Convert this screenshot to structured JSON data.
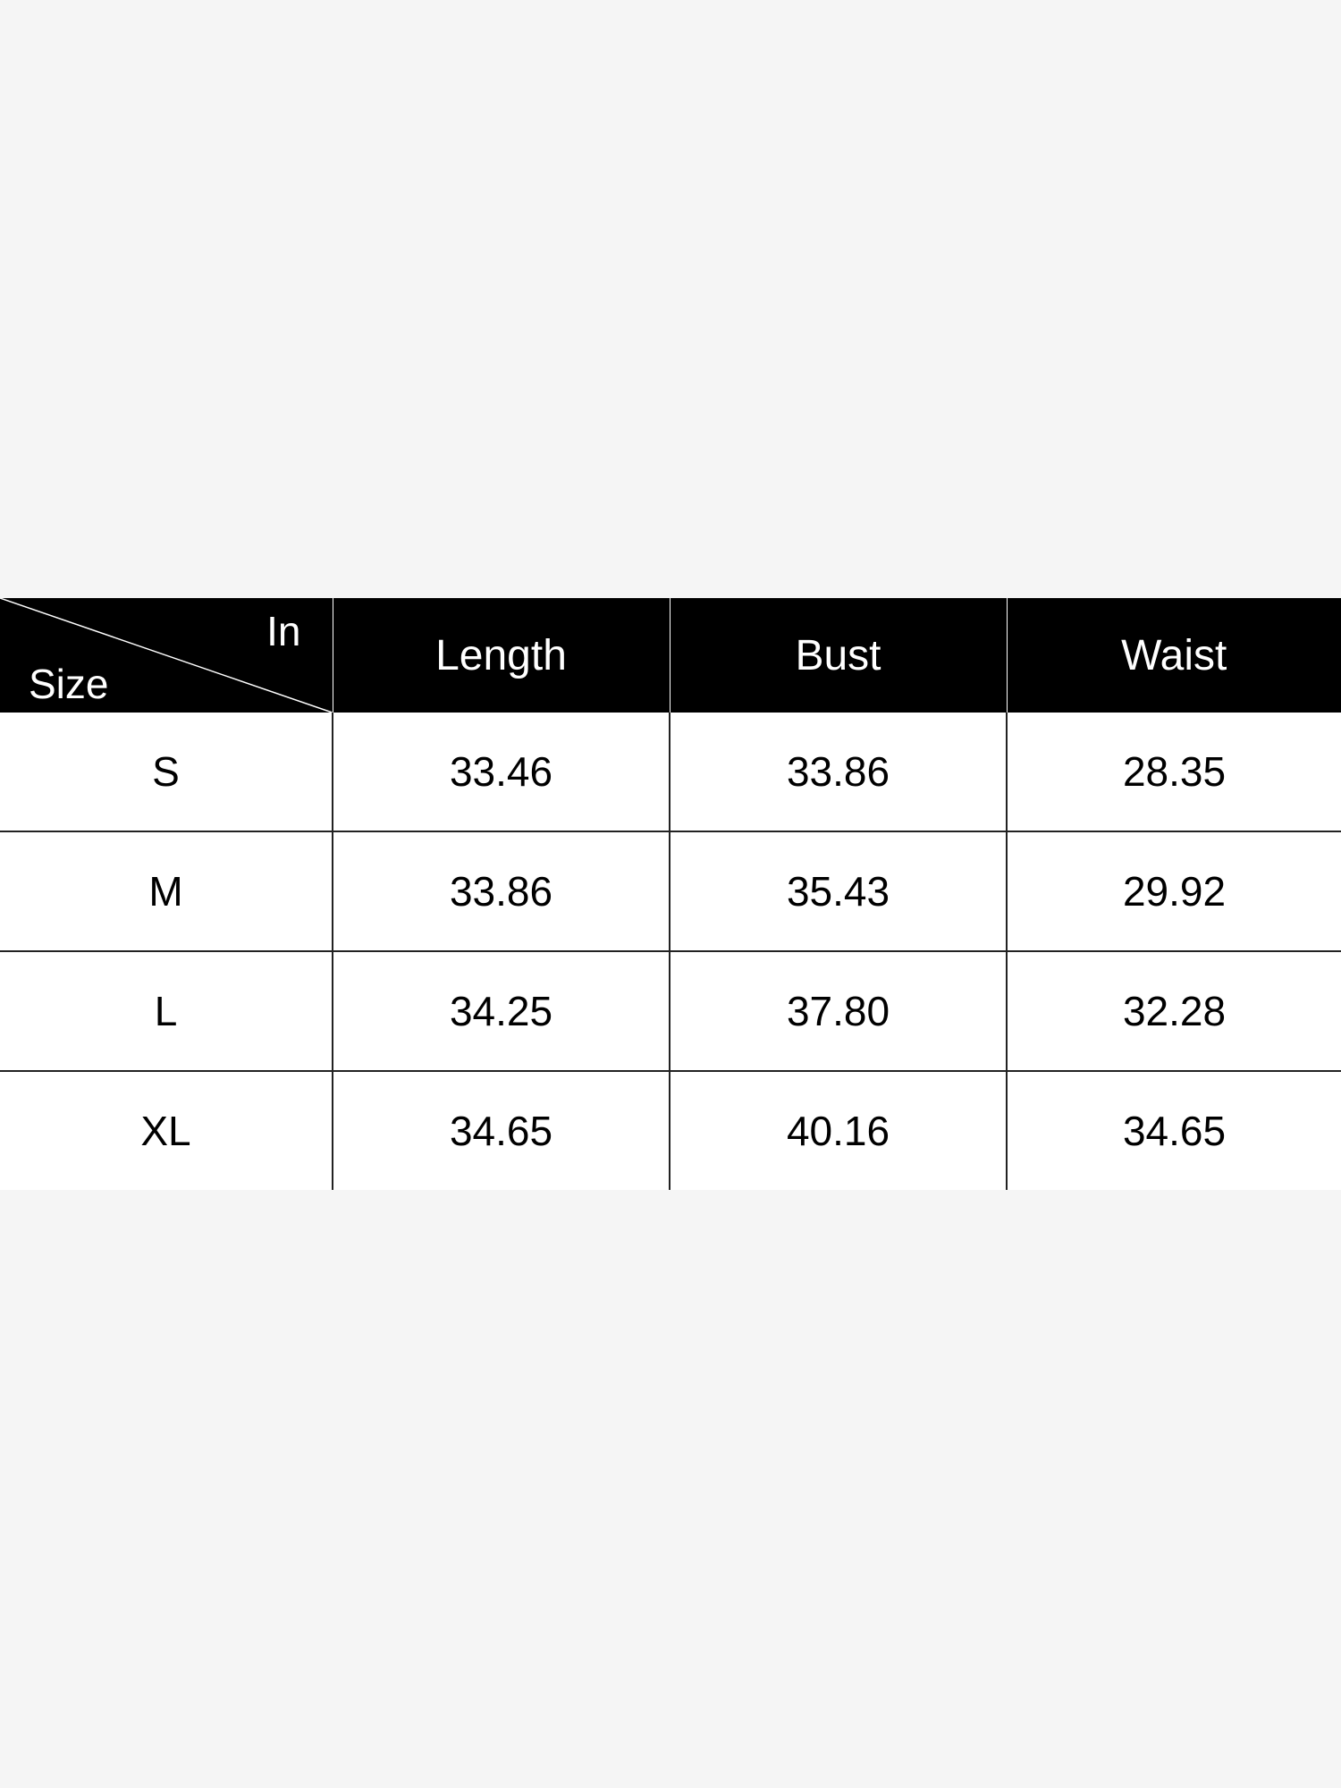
{
  "table": {
    "corner": {
      "unit_label": "In",
      "row_label": "Size"
    },
    "columns": [
      "Length",
      "Bust",
      "Waist"
    ],
    "rows": [
      {
        "size": "S",
        "values": [
          "33.46",
          "33.86",
          "28.35"
        ]
      },
      {
        "size": "M",
        "values": [
          "33.86",
          "35.43",
          "29.92"
        ]
      },
      {
        "size": "L",
        "values": [
          "34.25",
          "37.80",
          "32.28"
        ]
      },
      {
        "size": "XL",
        "values": [
          "34.65",
          "40.16",
          "34.65"
        ]
      }
    ]
  },
  "colors": {
    "header_bg": "#000000",
    "header_text": "#ffffff",
    "background": "#f5f5f5"
  }
}
